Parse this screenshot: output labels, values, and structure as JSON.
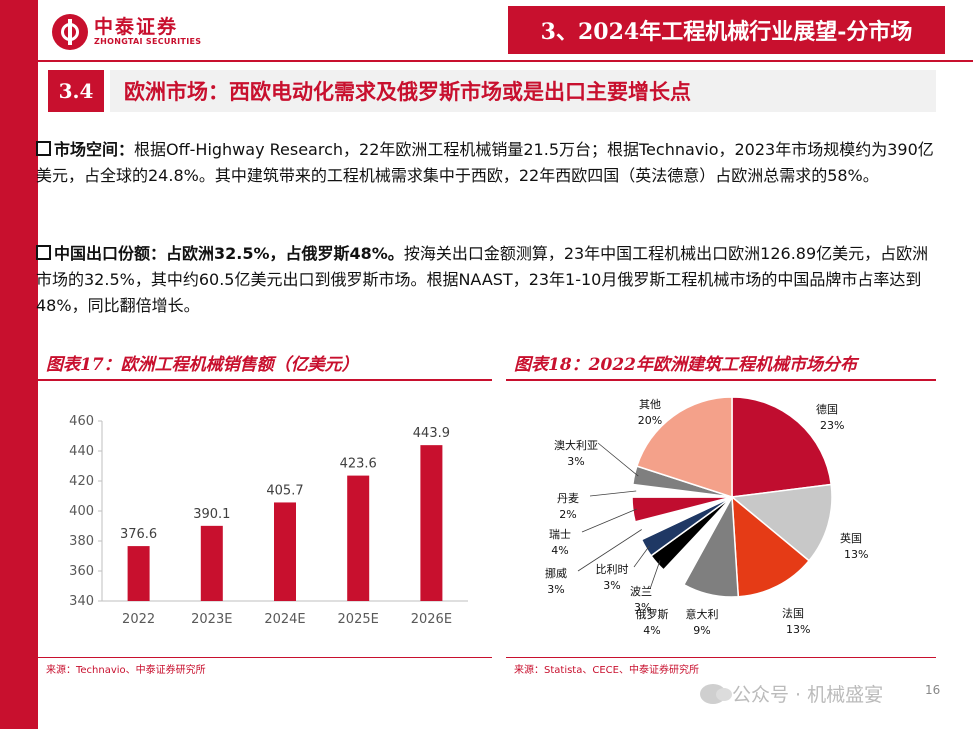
{
  "brand": {
    "name_cn": "中泰证券",
    "name_en": "ZHONGTAI SECURITIES"
  },
  "header": {
    "title": "3、2024年工程机械行业展望-分市场"
  },
  "section": {
    "number": "3.4",
    "title": "欧洲市场：西欧电动化需求及俄罗斯市场或是出口主要增长点"
  },
  "paragraphs": {
    "p1_head": "市场空间：",
    "p1_body": "根据Off-Highway Research，22年欧洲工程机械销量21.5万台；根据Technavio，2023年市场规模约为390亿美元，占全球的24.8%。其中建筑带来的工程机械需求集中于西欧，22年西欧四国（英法德意）占欧洲总需求的58%。",
    "p2_head": "中国出口份额：占欧洲32.5%，占俄罗斯48%。",
    "p2_body": "按海关出口金额测算，23年中国工程机械出口欧洲126.89亿美元，占欧洲市场的32.5%，其中约60.5亿美元出口到俄罗斯市场。根据NAAST，23年1-10月俄罗斯工程机械市场的中国品牌市占率达到48%，同比翻倍增长。"
  },
  "left_panel": {
    "title": "图表17：欧洲工程机械销售额（亿美元）",
    "source": "来源：Technavio、中泰证券研究所"
  },
  "right_panel": {
    "title": "图表18：2022年欧洲建筑工程机械市场分布",
    "source": "来源：Statista、CECE、中泰证券研究所"
  },
  "watermark": {
    "text": "公众号 · 机械盛宴"
  },
  "page": {
    "number": "16"
  },
  "colors": {
    "brand_red": "#c8102e"
  },
  "chart_data": [
    {
      "type": "bar",
      "categories": [
        "2022",
        "2023E",
        "2024E",
        "2025E",
        "2026E"
      ],
      "values": [
        376.6,
        390.1,
        405.7,
        423.6,
        443.9
      ],
      "ylim": [
        340,
        460
      ],
      "yticks": [
        340,
        360,
        380,
        400,
        420,
        440,
        460
      ],
      "grid": false,
      "bar_color": "#c8102e"
    },
    {
      "type": "pie",
      "slices": [
        {
          "label": "德国",
          "pct": "23%",
          "value": 23,
          "color": "#c00d2f"
        },
        {
          "label": "英国",
          "pct": "13%",
          "value": 13,
          "color": "#c8c8c8"
        },
        {
          "label": "法国",
          "pct": "13%",
          "value": 13,
          "color": "#e53b16"
        },
        {
          "label": "意大利",
          "pct": "9%",
          "value": 9,
          "color": "#7f7f7f"
        },
        {
          "label": "俄罗斯",
          "pct": "4%",
          "value": 4,
          "color": "#ffffff"
        },
        {
          "label": "波兰",
          "pct": "3%",
          "value": 3,
          "color": "#000000"
        },
        {
          "label": "比利时",
          "pct": "3%",
          "value": 3,
          "color": "#1f3864"
        },
        {
          "label": "挪威",
          "pct": "3%",
          "value": 3,
          "color": "#ffffff"
        },
        {
          "label": "瑞士",
          "pct": "4%",
          "value": 4,
          "color": "#c00d2f"
        },
        {
          "label": "丹麦",
          "pct": "2%",
          "value": 2,
          "color": "#ffffff"
        },
        {
          "label": "澳大利亚",
          "pct": "3%",
          "value": 3,
          "color": "#7f7f7f"
        },
        {
          "label": "其他",
          "pct": "20%",
          "value": 20,
          "color": "#f4a18a"
        }
      ]
    }
  ]
}
